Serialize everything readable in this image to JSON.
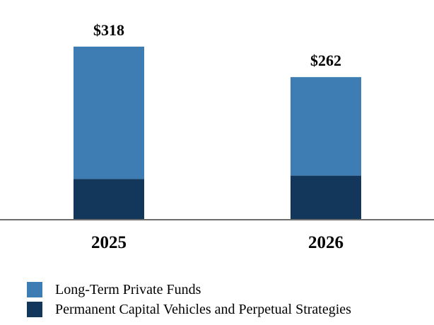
{
  "chart_data": {
    "type": "bar",
    "stacked": true,
    "categories": [
      "2025",
      "2026"
    ],
    "series": [
      {
        "name": "Permanent Capital Vehicles and Perpetual Strategies",
        "values": [
          75,
          81
        ],
        "color": "#12375a"
      },
      {
        "name": "Long-Term Private Funds",
        "values": [
          243,
          181
        ],
        "color": "#3e7db4"
      }
    ],
    "total_labels": [
      "$318",
      "$262"
    ],
    "totals": [
      318,
      262
    ],
    "ylim": [
      0,
      318
    ],
    "legend_position": "bottom-left",
    "grid": false
  },
  "legend": {
    "items": [
      {
        "label": "Long-Term Private Funds",
        "color": "#3e7db4"
      },
      {
        "label": "Permanent Capital Vehicles and Perpetual Strategies",
        "color": "#12375a"
      }
    ]
  }
}
